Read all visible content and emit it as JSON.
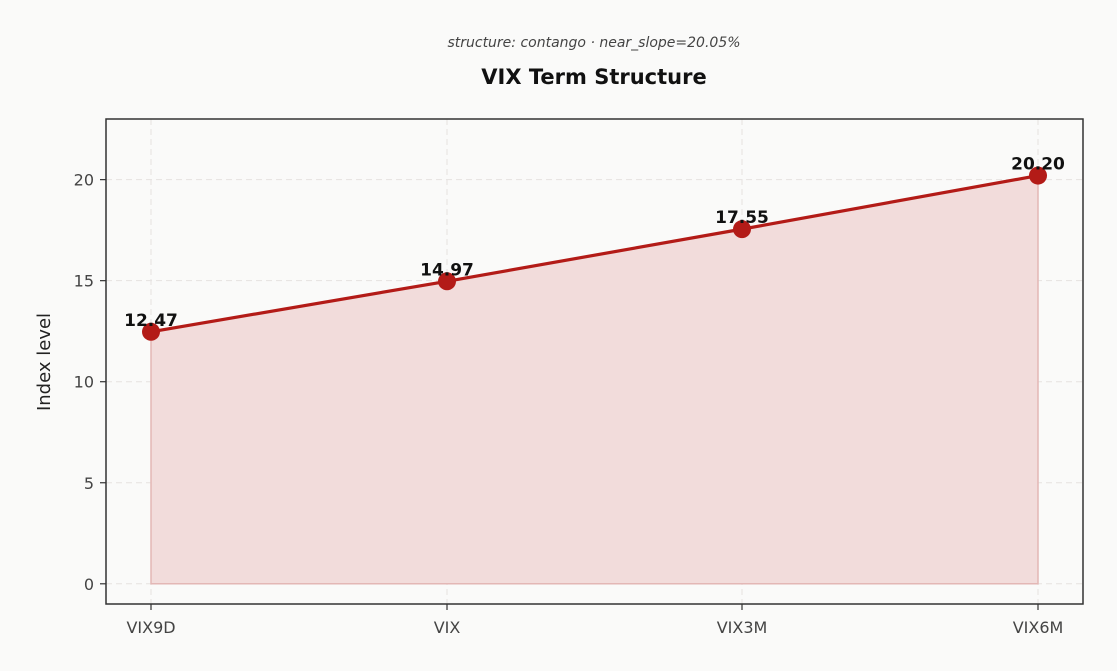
{
  "chart_data": {
    "type": "area",
    "title": "VIX Term Structure",
    "subtitle": "structure: contango · near_slope=20.05%",
    "xlabel": "",
    "ylabel": "Index level",
    "categories": [
      "VIX9D",
      "VIX",
      "VIX3M",
      "VIX6M"
    ],
    "series": [
      {
        "values": [
          12.47,
          14.97,
          17.55,
          20.2
        ]
      }
    ],
    "data_labels": [
      "12.47",
      "14.97",
      "17.55",
      "20.20"
    ],
    "ylim": [
      -1,
      23
    ],
    "yticks": [
      0,
      5,
      10,
      15,
      20
    ],
    "grid": true,
    "colors": {
      "line": "#b31b17",
      "marker": "#b31b17",
      "fill": "#f2dcdb",
      "fill_edge": "#e3b7b5",
      "background": "#fafaf9",
      "frame": "#333333"
    }
  }
}
